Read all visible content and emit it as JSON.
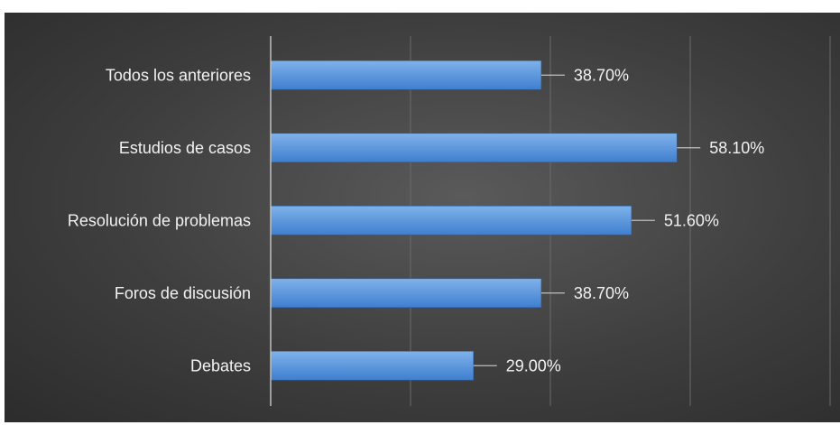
{
  "chart_data": {
    "type": "bar",
    "orientation": "horizontal",
    "categories": [
      "Todos los anteriores",
      "Estudios de casos",
      "Resolución de problemas",
      "Foros de discusión",
      "Debates"
    ],
    "values": [
      38.7,
      58.1,
      51.6,
      38.7,
      29.0
    ],
    "value_labels": [
      "38.70%",
      "58.10%",
      "51.60%",
      "38.70%",
      "29.00%"
    ],
    "xlim": [
      0,
      80
    ],
    "grid": true,
    "legend": "none",
    "title": "",
    "xlabel": "",
    "ylabel": "",
    "colors": {
      "bar_top": "#7fb2ea",
      "bar_bottom": "#3f7fcf",
      "gridline": "#6a6a6a",
      "axis": "#bfbfbf",
      "text": "#f2f2f2",
      "leader": "#bfbfbf"
    }
  }
}
